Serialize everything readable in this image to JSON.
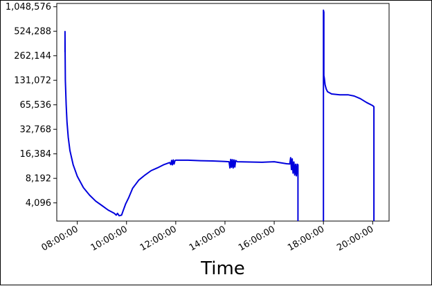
{
  "chart_data": {
    "type": "line",
    "title": "",
    "xlabel": "Time",
    "ylabel": "",
    "yscale": "log2",
    "grid": false,
    "legend": "none",
    "xlim": [
      "07:10:00",
      "20:40:00"
    ],
    "ylim": [
      2450,
      1150000
    ],
    "x_ticks": [
      "08:00:00",
      "10:00:00",
      "12:00:00",
      "14:00:00",
      "16:00:00",
      "18:00:00",
      "20:00:00"
    ],
    "y_ticks": [
      {
        "value": 4096,
        "label": "4,096"
      },
      {
        "value": 8192,
        "label": "8,192"
      },
      {
        "value": 16384,
        "label": "16,384"
      },
      {
        "value": 32768,
        "label": "32,768"
      },
      {
        "value": 65536,
        "label": "65,536"
      },
      {
        "value": 131072,
        "label": "131,072"
      },
      {
        "value": 262144,
        "label": "262,144"
      },
      {
        "value": 524288,
        "label": "524,288"
      },
      {
        "value": 1048576,
        "label": "1,048,576"
      }
    ],
    "color": "#0000dd",
    "series": [
      {
        "segments": [
          [
            [
              "07:30:00",
              290000
            ],
            [
              "07:30:00",
              520000
            ],
            [
              "07:30:30",
              260000
            ],
            [
              "07:31:00",
              130000
            ],
            [
              "07:33:00",
              65000
            ],
            [
              "07:35:00",
              40000
            ],
            [
              "07:38:00",
              26000
            ],
            [
              "07:42:00",
              18000
            ],
            [
              "07:50:00",
              12000
            ],
            [
              "08:00:00",
              8700
            ],
            [
              "08:15:00",
              6300
            ],
            [
              "08:30:00",
              5100
            ],
            [
              "08:45:00",
              4300
            ],
            [
              "09:00:00",
              3800
            ],
            [
              "09:15:00",
              3350
            ],
            [
              "09:25:00",
              3150
            ],
            [
              "09:30:00",
              3050
            ],
            [
              "09:35:00",
              2900
            ],
            [
              "09:38:00",
              3050
            ],
            [
              "09:42:00",
              2850
            ],
            [
              "09:48:00",
              2900
            ],
            [
              "09:52:00",
              3300
            ],
            [
              "09:58:00",
              4000
            ],
            [
              "10:05:00",
              4700
            ],
            [
              "10:15:00",
              6200
            ],
            [
              "10:30:00",
              7800
            ],
            [
              "10:45:00",
              9000
            ],
            [
              "11:00:00",
              10200
            ],
            [
              "11:15:00",
              11000
            ],
            [
              "11:30:00",
              12000
            ],
            [
              "11:45:00",
              12800
            ],
            [
              "11:48:00",
              12100
            ],
            [
              "11:50:00",
              13600
            ],
            [
              "11:52:00",
              12000
            ],
            [
              "11:54:00",
              13800
            ],
            [
              "11:56:00",
              12300
            ],
            [
              "11:58:00",
              13500
            ],
            [
              "12:00:00",
              13700
            ],
            [
              "12:30:00",
              13700
            ],
            [
              "13:00:00",
              13500
            ],
            [
              "13:30:00",
              13400
            ],
            [
              "14:00:00",
              13200
            ],
            [
              "14:10:00",
              13100
            ],
            [
              "14:12:00",
              11000
            ],
            [
              "14:14:00",
              14000
            ],
            [
              "14:16:00",
              11200
            ],
            [
              "14:18:00",
              13900
            ],
            [
              "14:20:00",
              11000
            ],
            [
              "14:22:00",
              13800
            ],
            [
              "14:24:00",
              11300
            ],
            [
              "14:26:00",
              13600
            ],
            [
              "14:30:00",
              13100
            ],
            [
              "15:00:00",
              13000
            ],
            [
              "15:30:00",
              12900
            ],
            [
              "16:00:00",
              13100
            ],
            [
              "16:30:00",
              12400
            ],
            [
              "16:38:00",
              12300
            ],
            [
              "16:40:00",
              14700
            ],
            [
              "16:42:00",
              10500
            ],
            [
              "16:44:00",
              14200
            ],
            [
              "16:46:00",
              9500
            ],
            [
              "16:48:00",
              13000
            ],
            [
              "16:50:00",
              9000
            ],
            [
              "16:52:00",
              12200
            ],
            [
              "16:54:00",
              8800
            ],
            [
              "16:56:00",
              12200
            ],
            [
              "16:58:00",
              12000
            ],
            [
              "16:58:00",
              2450
            ]
          ],
          [
            [
              "18:00:00",
              2450
            ],
            [
              "18:00:00",
              950000
            ],
            [
              "18:01:00",
              900000
            ],
            [
              "18:01:00",
              150000
            ],
            [
              "18:02:00",
              140000
            ],
            [
              "18:04:00",
              115000
            ],
            [
              "18:07:00",
              102000
            ],
            [
              "18:10:00",
              95000
            ],
            [
              "18:20:00",
              89000
            ],
            [
              "18:40:00",
              87000
            ],
            [
              "19:00:00",
              87000
            ],
            [
              "19:15:00",
              84000
            ],
            [
              "19:30:00",
              78000
            ],
            [
              "19:45:00",
              70000
            ],
            [
              "20:00:00",
              64000
            ],
            [
              "20:03:00",
              62000
            ],
            [
              "20:03:00",
              2450
            ]
          ]
        ]
      }
    ]
  }
}
